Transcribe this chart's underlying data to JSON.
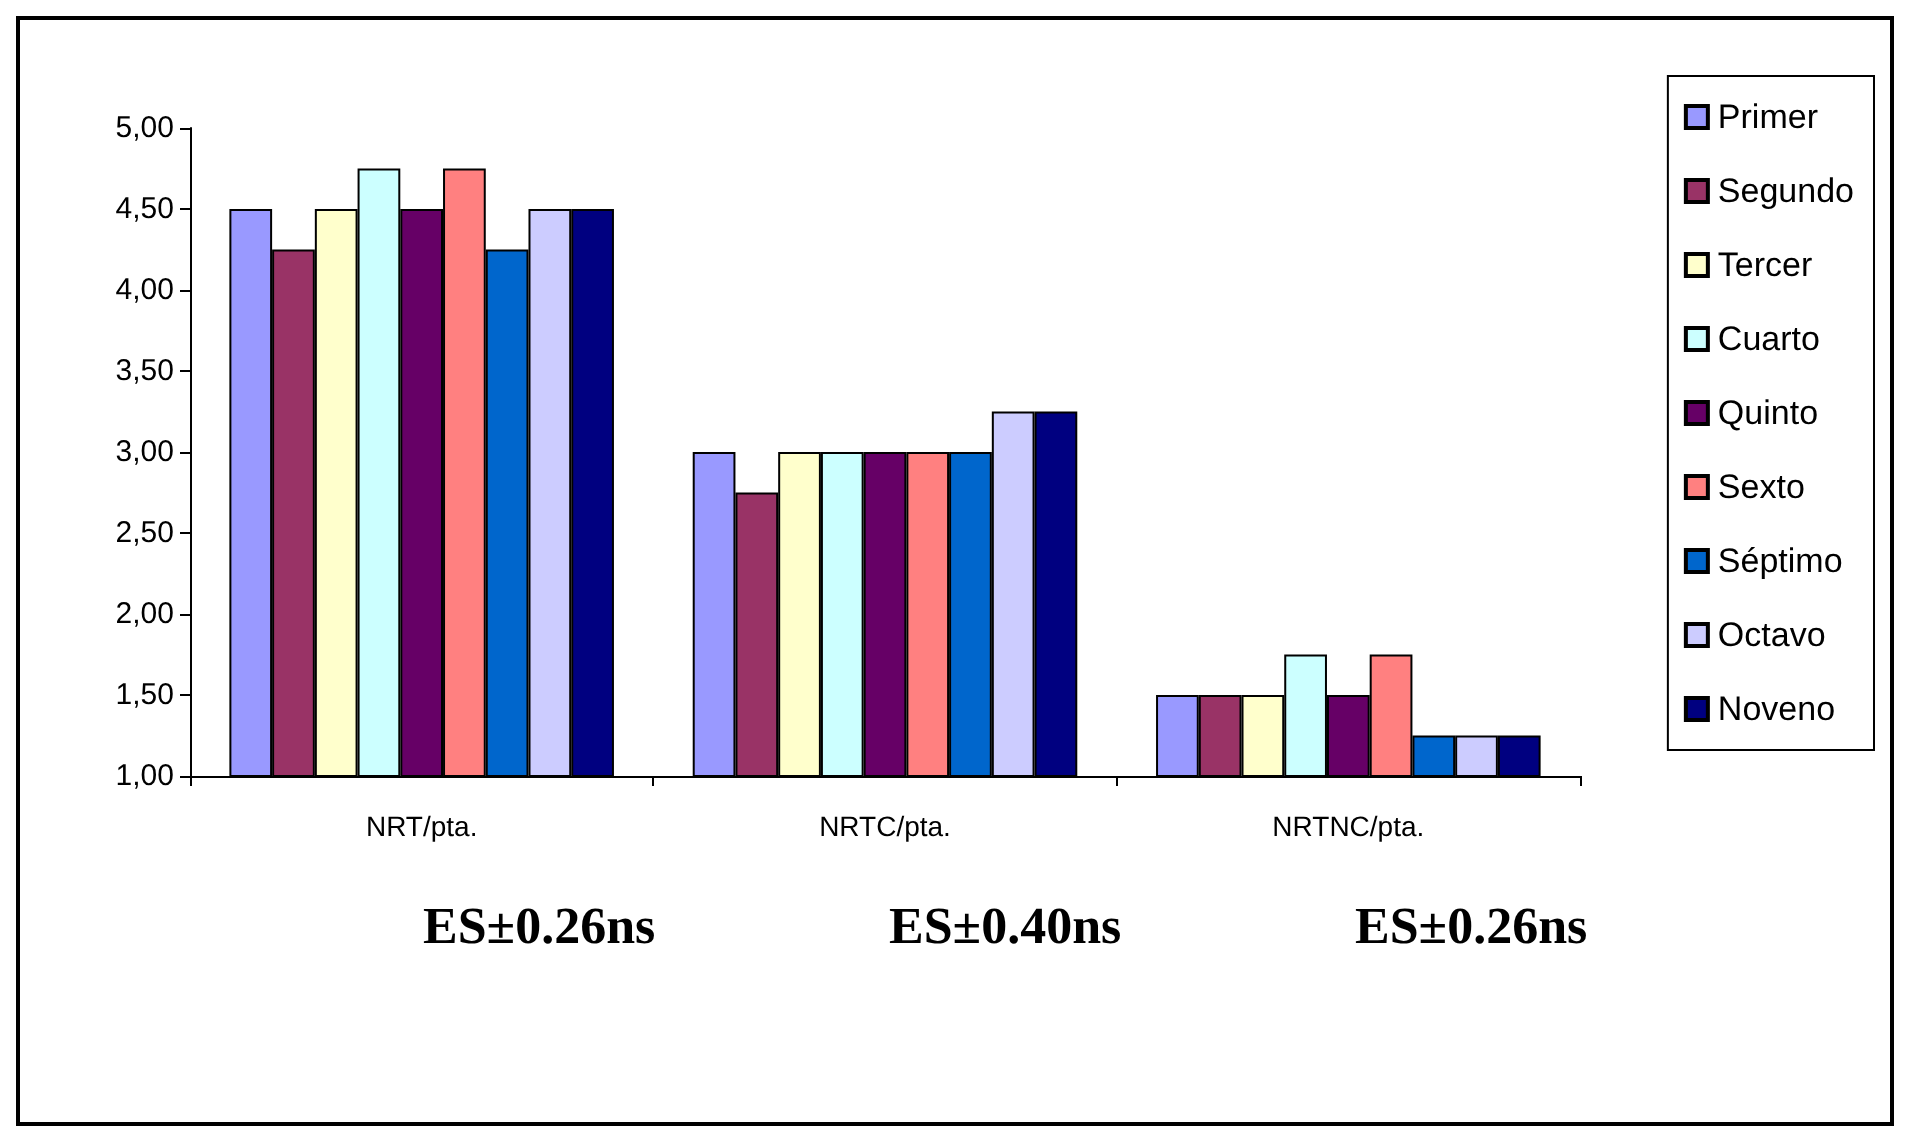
{
  "chart_data": {
    "type": "bar",
    "categories": [
      "NRT/pta.",
      "NRTC/pta.",
      "NRTNC/pta."
    ],
    "series": [
      {
        "name": "Primer",
        "color": "#9999ff",
        "values": [
          4.5,
          3.0,
          1.5
        ]
      },
      {
        "name": "Segundo",
        "color": "#993366",
        "values": [
          4.25,
          2.75,
          1.5
        ]
      },
      {
        "name": "Tercer",
        "color": "#ffffcc",
        "values": [
          4.5,
          3.0,
          1.5
        ]
      },
      {
        "name": "Cuarto",
        "color": "#ccffff",
        "values": [
          4.75,
          3.0,
          1.75
        ]
      },
      {
        "name": "Quinto",
        "color": "#660066",
        "values": [
          4.5,
          3.0,
          1.5
        ]
      },
      {
        "name": "Sexto",
        "color": "#ff8080",
        "values": [
          4.75,
          3.0,
          1.75
        ]
      },
      {
        "name": "Séptimo",
        "color": "#0066cc",
        "values": [
          4.25,
          3.0,
          1.25
        ]
      },
      {
        "name": "Octavo",
        "color": "#ccccff",
        "values": [
          4.5,
          3.25,
          1.25
        ]
      },
      {
        "name": "Noveno",
        "color": "#000080",
        "values": [
          4.5,
          3.25,
          1.25
        ]
      }
    ],
    "ylim": [
      1,
      5
    ],
    "yticks": [
      {
        "value": 1,
        "label": "1,00"
      },
      {
        "value": 1.5,
        "label": "1,50"
      },
      {
        "value": 2,
        "label": "2,00"
      },
      {
        "value": 2.5,
        "label": "2,50"
      },
      {
        "value": 3,
        "label": "3,00"
      },
      {
        "value": 3.5,
        "label": "3,50"
      },
      {
        "value": 4,
        "label": "4,00"
      },
      {
        "value": 4.5,
        "label": "4,50"
      },
      {
        "value": 5,
        "label": "5,00"
      }
    ],
    "grid": false,
    "legend": "right",
    "annotations": [
      "ES±0.26ns",
      "ES±0.40ns",
      "ES±0.26ns"
    ]
  }
}
